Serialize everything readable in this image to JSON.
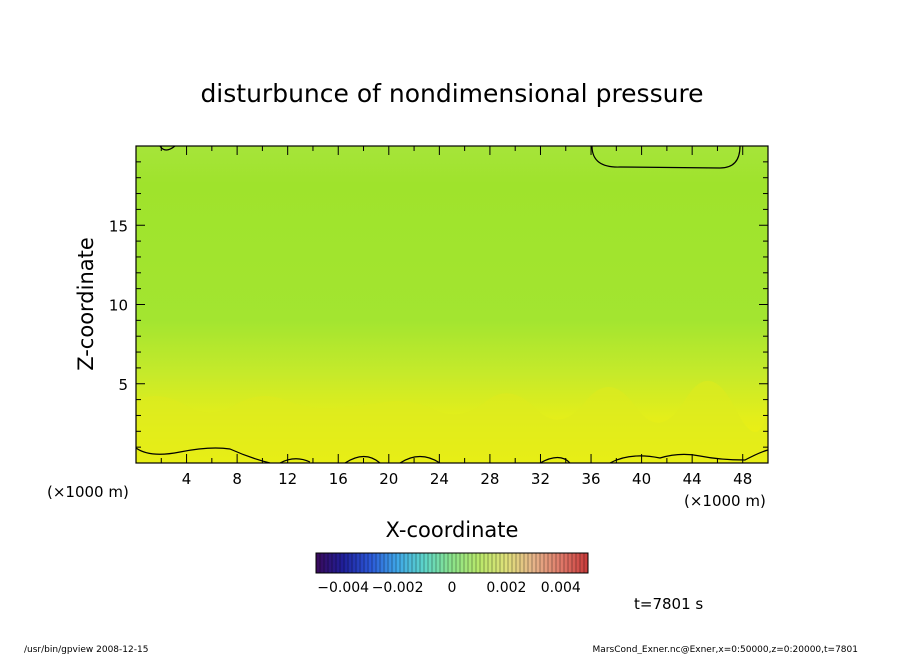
{
  "chart_data": {
    "type": "heatmap",
    "title": "disturbunce of nondimensional pressure",
    "xlabel": "X-coordinate",
    "ylabel": "Z-coordinate",
    "x_unit_left": "(×1000 m)",
    "x_unit_right": "(×1000 m)",
    "xlim": [
      0,
      50
    ],
    "ylim": [
      0,
      20
    ],
    "x_ticks": [
      "4",
      "8",
      "12",
      "16",
      "20",
      "24",
      "28",
      "32",
      "36",
      "40",
      "44",
      "48"
    ],
    "y_ticks": [
      "5",
      "10",
      "15"
    ],
    "colorbar": {
      "labels": [
        "−0.004",
        "−0.002",
        "0",
        "0.002",
        "0.004"
      ],
      "range": [
        -0.005,
        0.005
      ],
      "colors": [
        "#3a0a5a",
        "#1f1f9a",
        "#2b58d8",
        "#3fa8e8",
        "#5ed6c8",
        "#8be38a",
        "#b9e86a",
        "#dfe07a",
        "#e6b48a",
        "#e07a6a",
        "#c83a3a"
      ]
    },
    "field_description_rows": [
      {
        "z": 19.0,
        "value": 0.0009
      },
      {
        "z": 15.0,
        "value": 0.0008
      },
      {
        "z": 11.0,
        "value": 0.0007
      },
      {
        "z": 6.0,
        "value": 0.0011
      },
      {
        "z": 2.0,
        "value": 0.0018
      },
      {
        "z": 0.5,
        "value": 0.0024
      }
    ],
    "time_label": "t=7801 s"
  },
  "footer": {
    "left": "/usr/bin/gpview   2008-12-15",
    "right": "MarsCond_Exner.nc@Exner,x=0:50000,z=0:20000,t=7801"
  }
}
